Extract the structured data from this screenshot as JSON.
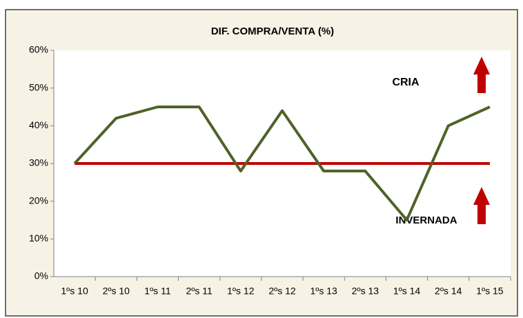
{
  "chart_data": {
    "type": "line",
    "title": "DIF. COMPRA/VENTA (%)",
    "categories": [
      "1ºs 10",
      "2ºs 10",
      "1ºs 11",
      "2ºs 11",
      "1ºs 12",
      "2ºs 12",
      "1ºs 13",
      "2ºs 13",
      "1ºs 14",
      "2ºs 14",
      "1ºs 15"
    ],
    "series": [
      {
        "color": "#4f6228",
        "values": [
          30,
          42,
          45,
          45,
          28,
          44,
          28,
          28,
          15,
          40,
          45
        ]
      },
      {
        "color": "#c00000",
        "values": [
          30,
          30,
          30,
          30,
          30,
          30,
          30,
          30,
          30,
          30,
          30
        ]
      }
    ],
    "annotations": [
      "CRIA",
      "INVERNADA"
    ],
    "ylim": [
      0,
      60
    ],
    "yticks": [
      {
        "value": 0,
        "label": "0%"
      },
      {
        "value": 10,
        "label": "10%"
      },
      {
        "value": 20,
        "label": "20%"
      },
      {
        "value": 30,
        "label": "30%"
      },
      {
        "value": 40,
        "label": "40%"
      },
      {
        "value": 50,
        "label": "50%"
      },
      {
        "value": 60,
        "label": "60%"
      }
    ],
    "grid": false
  }
}
